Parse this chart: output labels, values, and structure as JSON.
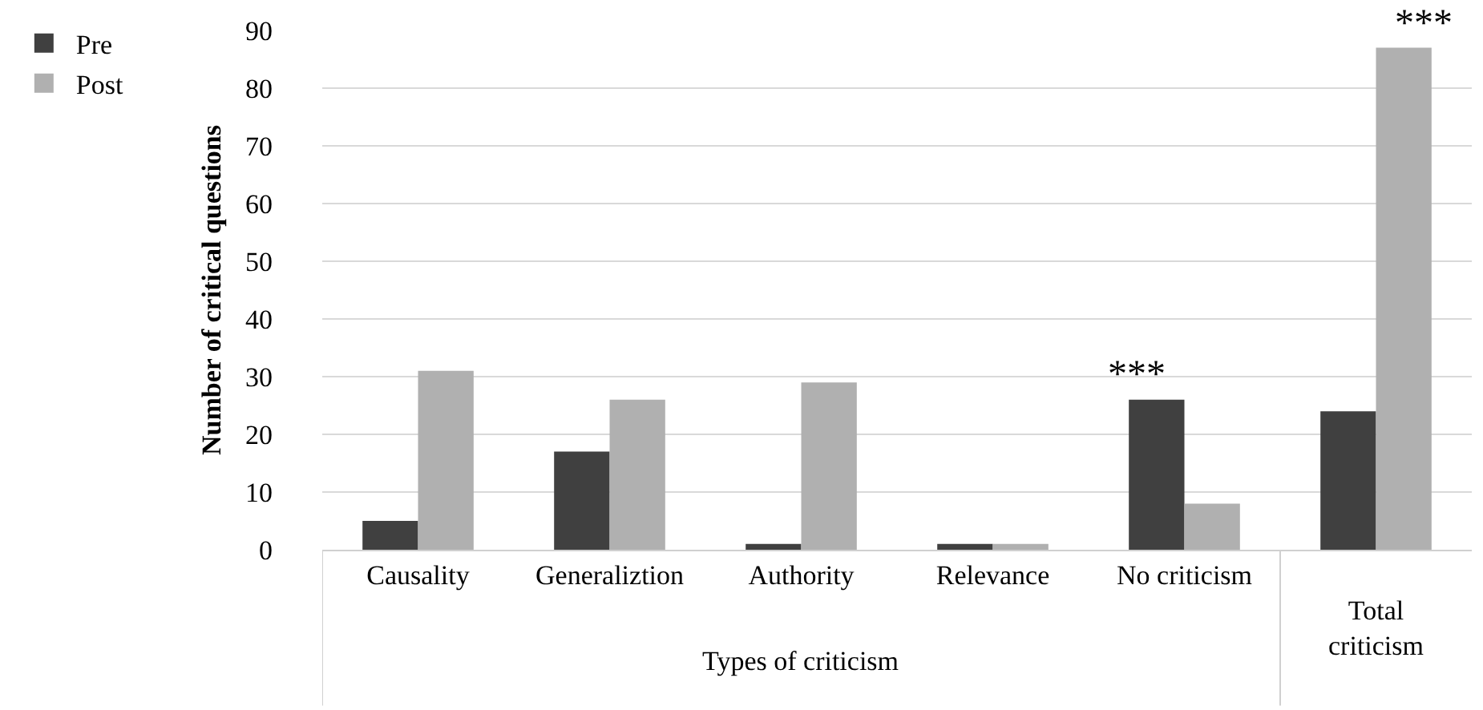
{
  "chart_data": {
    "type": "bar",
    "xlabel": "Types of criticism",
    "ylabel": "Number of critical questions",
    "categories": [
      "Causality",
      "Generaliztion",
      "Authority",
      "Relevance",
      "No criticism",
      "Total criticism"
    ],
    "series": [
      {
        "name": "Pre",
        "color": "#404040",
        "values": [
          5,
          17,
          1,
          1,
          26,
          24
        ]
      },
      {
        "name": "Post",
        "color": "#b0b0b0",
        "values": [
          31,
          26,
          29,
          1,
          8,
          87
        ]
      }
    ],
    "ylim": [
      0,
      90
    ],
    "yticks": [
      0,
      10,
      20,
      30,
      40,
      50,
      60,
      70,
      80,
      90
    ],
    "grid": "y",
    "legend": "top left",
    "annotations": [
      {
        "text": "***",
        "x": "No criticism",
        "y": 26
      },
      {
        "text": "***",
        "x": "Total criticism",
        "y": 87
      }
    ]
  }
}
